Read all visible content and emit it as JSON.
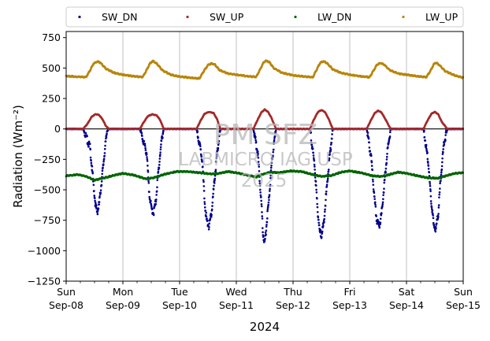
{
  "chart_data": {
    "type": "scatter",
    "ylabel": "Radiation (Wm⁻²)",
    "xlabel": "2024",
    "ylim": [
      -1250,
      800
    ],
    "xlim_days": [
      8,
      15
    ],
    "yticks": [
      750,
      500,
      250,
      0,
      -250,
      -500,
      -750,
      -1000,
      -1250
    ],
    "ytick_labels": [
      "750",
      "500",
      "250",
      "0",
      "−250",
      "−500",
      "−750",
      "−1000",
      "−1250"
    ],
    "xticks": [
      {
        "day": 8,
        "line1": "Sun",
        "line2": "Sep-08"
      },
      {
        "day": 9,
        "line1": "Mon",
        "line2": "Sep-09"
      },
      {
        "day": 10,
        "line1": "Tue",
        "line2": "Sep-10"
      },
      {
        "day": 11,
        "line1": "Wed",
        "line2": "Sep-11"
      },
      {
        "day": 12,
        "line1": "Thu",
        "line2": "Sep-12"
      },
      {
        "day": 13,
        "line1": "Fri",
        "line2": "Sep-13"
      },
      {
        "day": 14,
        "line1": "Sat",
        "line2": "Sep-14"
      },
      {
        "day": 15,
        "line1": "Sun",
        "line2": "Sep-15"
      }
    ],
    "grid": "vertical",
    "legend_position": "top",
    "watermark": [
      "PM SFZ",
      "LABMICRO IAG USP",
      "2025"
    ],
    "series": [
      {
        "name": "SW_DN",
        "color": "#00008b",
        "points": [
          [
            8.0,
            0
          ],
          [
            8.3,
            0
          ],
          [
            8.42,
            -150
          ],
          [
            8.48,
            -450
          ],
          [
            8.52,
            -640
          ],
          [
            8.55,
            -680
          ],
          [
            8.58,
            -620
          ],
          [
            8.62,
            -450
          ],
          [
            8.68,
            -180
          ],
          [
            8.72,
            -20
          ],
          [
            8.75,
            0
          ],
          [
            9.0,
            0
          ],
          [
            9.3,
            0
          ],
          [
            9.42,
            -200
          ],
          [
            9.46,
            -500
          ],
          [
            9.5,
            -650
          ],
          [
            9.54,
            -690
          ],
          [
            9.58,
            -600
          ],
          [
            9.62,
            -380
          ],
          [
            9.68,
            -100
          ],
          [
            9.72,
            0
          ],
          [
            10.0,
            0
          ],
          [
            10.3,
            0
          ],
          [
            10.4,
            -250
          ],
          [
            10.44,
            -600
          ],
          [
            10.48,
            -760
          ],
          [
            10.52,
            -800
          ],
          [
            10.56,
            -700
          ],
          [
            10.6,
            -500
          ],
          [
            10.66,
            -200
          ],
          [
            10.72,
            0
          ],
          [
            11.0,
            0
          ],
          [
            11.3,
            0
          ],
          [
            11.38,
            -200
          ],
          [
            11.44,
            -600
          ],
          [
            11.47,
            -850
          ],
          [
            11.5,
            -950
          ],
          [
            11.53,
            -800
          ],
          [
            11.58,
            -550
          ],
          [
            11.63,
            -250
          ],
          [
            11.7,
            0
          ],
          [
            12.0,
            0
          ],
          [
            12.3,
            0
          ],
          [
            12.38,
            -300
          ],
          [
            12.43,
            -650
          ],
          [
            12.47,
            -840
          ],
          [
            12.5,
            -880
          ],
          [
            12.54,
            -780
          ],
          [
            12.58,
            -560
          ],
          [
            12.64,
            -250
          ],
          [
            12.7,
            0
          ],
          [
            13.0,
            0
          ],
          [
            13.3,
            0
          ],
          [
            13.38,
            -250
          ],
          [
            13.44,
            -600
          ],
          [
            13.48,
            -760
          ],
          [
            13.52,
            -790
          ],
          [
            13.56,
            -700
          ],
          [
            13.6,
            -500
          ],
          [
            13.66,
            -200
          ],
          [
            13.72,
            0
          ],
          [
            14.0,
            0
          ],
          [
            14.3,
            0
          ],
          [
            14.38,
            -250
          ],
          [
            14.44,
            -620
          ],
          [
            14.48,
            -790
          ],
          [
            14.52,
            -820
          ],
          [
            14.56,
            -700
          ],
          [
            14.6,
            -420
          ],
          [
            14.66,
            -120
          ],
          [
            14.72,
            0
          ],
          [
            15.0,
            0
          ]
        ]
      },
      {
        "name": "SW_UP",
        "color": "#a52a2a",
        "points": [
          [
            8.0,
            0
          ],
          [
            8.3,
            0
          ],
          [
            8.38,
            45
          ],
          [
            8.45,
            100
          ],
          [
            8.52,
            122
          ],
          [
            8.58,
            115
          ],
          [
            8.64,
            80
          ],
          [
            8.7,
            25
          ],
          [
            8.75,
            0
          ],
          [
            9.0,
            0
          ],
          [
            9.3,
            0
          ],
          [
            9.36,
            50
          ],
          [
            9.44,
            105
          ],
          [
            9.52,
            120
          ],
          [
            9.6,
            110
          ],
          [
            9.66,
            70
          ],
          [
            9.72,
            0
          ],
          [
            10.0,
            0
          ],
          [
            10.3,
            0
          ],
          [
            10.36,
            60
          ],
          [
            10.44,
            125
          ],
          [
            10.52,
            140
          ],
          [
            10.6,
            130
          ],
          [
            10.66,
            80
          ],
          [
            10.72,
            0
          ],
          [
            11.0,
            0
          ],
          [
            11.3,
            0
          ],
          [
            11.36,
            60
          ],
          [
            11.44,
            135
          ],
          [
            11.5,
            160
          ],
          [
            11.56,
            140
          ],
          [
            11.62,
            90
          ],
          [
            11.7,
            0
          ],
          [
            12.0,
            0
          ],
          [
            12.3,
            0
          ],
          [
            12.36,
            70
          ],
          [
            12.44,
            140
          ],
          [
            12.5,
            155
          ],
          [
            12.56,
            140
          ],
          [
            12.62,
            90
          ],
          [
            12.7,
            0
          ],
          [
            13.0,
            0
          ],
          [
            13.3,
            0
          ],
          [
            13.36,
            60
          ],
          [
            13.44,
            130
          ],
          [
            13.5,
            150
          ],
          [
            13.56,
            135
          ],
          [
            13.64,
            70
          ],
          [
            13.72,
            0
          ],
          [
            14.0,
            0
          ],
          [
            14.3,
            0
          ],
          [
            14.36,
            60
          ],
          [
            14.44,
            125
          ],
          [
            14.5,
            140
          ],
          [
            14.56,
            120
          ],
          [
            14.62,
            60
          ],
          [
            14.72,
            0
          ],
          [
            15.0,
            0
          ]
        ]
      },
      {
        "name": "LW_DN",
        "color": "#006400",
        "points": [
          [
            8.0,
            -385
          ],
          [
            8.2,
            -375
          ],
          [
            8.35,
            -390
          ],
          [
            8.5,
            -420
          ],
          [
            8.65,
            -405
          ],
          [
            8.85,
            -380
          ],
          [
            9.0,
            -365
          ],
          [
            9.2,
            -380
          ],
          [
            9.4,
            -410
          ],
          [
            9.55,
            -400
          ],
          [
            9.75,
            -370
          ],
          [
            9.95,
            -350
          ],
          [
            10.15,
            -350
          ],
          [
            10.35,
            -360
          ],
          [
            10.55,
            -370
          ],
          [
            10.7,
            -365
          ],
          [
            10.85,
            -350
          ],
          [
            11.0,
            -360
          ],
          [
            11.2,
            -380
          ],
          [
            11.35,
            -395
          ],
          [
            11.45,
            -375
          ],
          [
            11.6,
            -355
          ],
          [
            11.75,
            -360
          ],
          [
            11.95,
            -345
          ],
          [
            12.15,
            -350
          ],
          [
            12.35,
            -375
          ],
          [
            12.5,
            -390
          ],
          [
            12.65,
            -385
          ],
          [
            12.85,
            -355
          ],
          [
            13.0,
            -345
          ],
          [
            13.2,
            -360
          ],
          [
            13.4,
            -385
          ],
          [
            13.55,
            -390
          ],
          [
            13.7,
            -375
          ],
          [
            13.85,
            -355
          ],
          [
            14.0,
            -365
          ],
          [
            14.2,
            -385
          ],
          [
            14.35,
            -400
          ],
          [
            14.55,
            -405
          ],
          [
            14.7,
            -385
          ],
          [
            14.85,
            -365
          ],
          [
            15.0,
            -360
          ]
        ]
      },
      {
        "name": "LW_UP",
        "color": "#b8860b",
        "points": [
          [
            8.0,
            435
          ],
          [
            8.2,
            428
          ],
          [
            8.35,
            425
          ],
          [
            8.42,
            480
          ],
          [
            8.48,
            535
          ],
          [
            8.55,
            553
          ],
          [
            8.6,
            545
          ],
          [
            8.7,
            495
          ],
          [
            8.85,
            460
          ],
          [
            9.0,
            445
          ],
          [
            9.2,
            432
          ],
          [
            9.35,
            426
          ],
          [
            9.42,
            485
          ],
          [
            9.48,
            540
          ],
          [
            9.53,
            558
          ],
          [
            9.6,
            535
          ],
          [
            9.7,
            480
          ],
          [
            9.85,
            445
          ],
          [
            10.0,
            430
          ],
          [
            10.2,
            420
          ],
          [
            10.35,
            415
          ],
          [
            10.42,
            470
          ],
          [
            10.5,
            525
          ],
          [
            10.56,
            538
          ],
          [
            10.62,
            530
          ],
          [
            10.7,
            485
          ],
          [
            10.85,
            455
          ],
          [
            11.0,
            445
          ],
          [
            11.2,
            432
          ],
          [
            11.35,
            428
          ],
          [
            11.42,
            490
          ],
          [
            11.48,
            545
          ],
          [
            11.52,
            560
          ],
          [
            11.58,
            550
          ],
          [
            11.66,
            500
          ],
          [
            11.8,
            462
          ],
          [
            12.0,
            440
          ],
          [
            12.2,
            430
          ],
          [
            12.35,
            425
          ],
          [
            12.42,
            490
          ],
          [
            12.48,
            545
          ],
          [
            12.54,
            555
          ],
          [
            12.6,
            540
          ],
          [
            12.7,
            490
          ],
          [
            12.85,
            460
          ],
          [
            13.0,
            445
          ],
          [
            13.2,
            432
          ],
          [
            13.35,
            425
          ],
          [
            13.42,
            480
          ],
          [
            13.48,
            528
          ],
          [
            13.54,
            540
          ],
          [
            13.6,
            530
          ],
          [
            13.7,
            485
          ],
          [
            13.85,
            455
          ],
          [
            14.0,
            445
          ],
          [
            14.2,
            432
          ],
          [
            14.35,
            425
          ],
          [
            14.42,
            475
          ],
          [
            14.48,
            530
          ],
          [
            14.52,
            545
          ],
          [
            14.58,
            525
          ],
          [
            14.68,
            475
          ],
          [
            14.85,
            440
          ],
          [
            15.0,
            420
          ]
        ]
      }
    ]
  }
}
